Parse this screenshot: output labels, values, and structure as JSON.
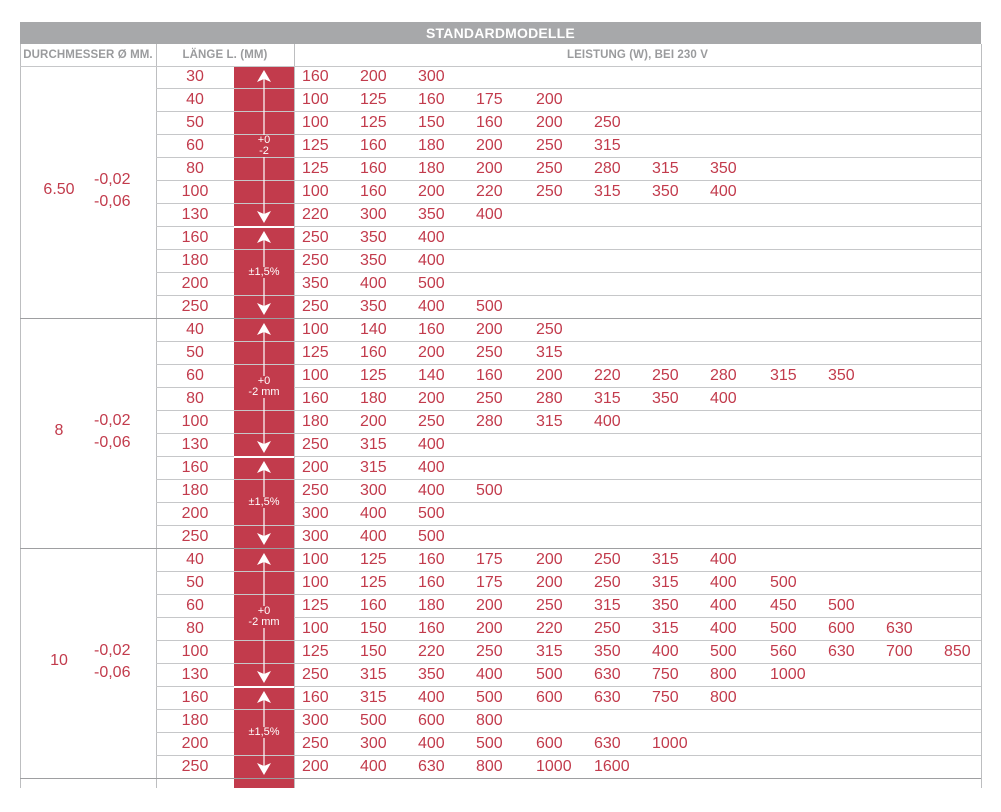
{
  "title": "STANDARDMODELLE",
  "headers": {
    "diameter": "DURCHMESSER Ø MM.",
    "length": "LÄNGE L. (MM)",
    "power": "LEISTUNG (W), BEI 230 V"
  },
  "groups": [
    {
      "diameter": "6.50",
      "tol_upper": "-0,02",
      "tol_lower": "-0,06",
      "length_tol_a": [
        "+0",
        "-2"
      ],
      "length_tol_b": "±1,5%",
      "rows": [
        {
          "length": "30",
          "powers": [
            "160",
            "200",
            "300"
          ]
        },
        {
          "length": "40",
          "powers": [
            "100",
            "125",
            "160",
            "175",
            "200"
          ]
        },
        {
          "length": "50",
          "powers": [
            "100",
            "125",
            "150",
            "160",
            "200",
            "250"
          ]
        },
        {
          "length": "60",
          "powers": [
            "125",
            "160",
            "180",
            "200",
            "250",
            "315"
          ]
        },
        {
          "length": "80",
          "powers": [
            "125",
            "160",
            "180",
            "200",
            "250",
            "280",
            "315",
            "350"
          ]
        },
        {
          "length": "100",
          "powers": [
            "100",
            "160",
            "200",
            "220",
            "250",
            "315",
            "350",
            "400"
          ]
        },
        {
          "length": "130",
          "powers": [
            "220",
            "300",
            "350",
            "400"
          ]
        },
        {
          "length": "160",
          "powers": [
            "250",
            "350",
            "400"
          ]
        },
        {
          "length": "180",
          "powers": [
            "250",
            "350",
            "400"
          ]
        },
        {
          "length": "200",
          "powers": [
            "350",
            "400",
            "500"
          ]
        },
        {
          "length": "250",
          "powers": [
            "250",
            "350",
            "400",
            "500"
          ]
        }
      ]
    },
    {
      "diameter": "8",
      "tol_upper": "-0,02",
      "tol_lower": "-0,06",
      "length_tol_a": [
        "+0",
        "-2 mm"
      ],
      "length_tol_b": "±1,5%",
      "rows": [
        {
          "length": "40",
          "powers": [
            "100",
            "140",
            "160",
            "200",
            "250"
          ]
        },
        {
          "length": "50",
          "powers": [
            "125",
            "160",
            "200",
            "250",
            "315"
          ]
        },
        {
          "length": "60",
          "powers": [
            "100",
            "125",
            "140",
            "160",
            "200",
            "220",
            "250",
            "280",
            "315",
            "350"
          ]
        },
        {
          "length": "80",
          "powers": [
            "160",
            "180",
            "200",
            "250",
            "280",
            "315",
            "350",
            "400"
          ]
        },
        {
          "length": "100",
          "powers": [
            "180",
            "200",
            "250",
            "280",
            "315",
            "400"
          ]
        },
        {
          "length": "130",
          "powers": [
            "250",
            "315",
            "400"
          ]
        },
        {
          "length": "160",
          "powers": [
            "200",
            "315",
            "400"
          ]
        },
        {
          "length": "180",
          "powers": [
            "250",
            "300",
            "400",
            "500"
          ]
        },
        {
          "length": "200",
          "powers": [
            "300",
            "400",
            "500"
          ]
        },
        {
          "length": "250",
          "powers": [
            "300",
            "400",
            "500"
          ]
        }
      ]
    },
    {
      "diameter": "10",
      "tol_upper": "-0,02",
      "tol_lower": "-0,06",
      "length_tol_a": [
        "+0",
        "-2 mm"
      ],
      "length_tol_b": "±1,5%",
      "rows": [
        {
          "length": "40",
          "powers": [
            "100",
            "125",
            "160",
            "175",
            "200",
            "250",
            "315",
            "400"
          ]
        },
        {
          "length": "50",
          "powers": [
            "100",
            "125",
            "160",
            "175",
            "200",
            "250",
            "315",
            "400",
            "500"
          ]
        },
        {
          "length": "60",
          "powers": [
            "125",
            "160",
            "180",
            "200",
            "250",
            "315",
            "350",
            "400",
            "450",
            "500"
          ]
        },
        {
          "length": "80",
          "powers": [
            "100",
            "150",
            "160",
            "200",
            "220",
            "250",
            "315",
            "400",
            "500",
            "600",
            "630"
          ]
        },
        {
          "length": "100",
          "powers": [
            "125",
            "150",
            "220",
            "250",
            "315",
            "350",
            "400",
            "500",
            "560",
            "630",
            "700",
            "850"
          ]
        },
        {
          "length": "130",
          "powers": [
            "250",
            "315",
            "350",
            "400",
            "500",
            "630",
            "750",
            "800",
            "1000"
          ]
        },
        {
          "length": "160",
          "powers": [
            "160",
            "315",
            "400",
            "500",
            "600",
            "630",
            "750",
            "800"
          ]
        },
        {
          "length": "180",
          "powers": [
            "300",
            "500",
            "600",
            "800"
          ]
        },
        {
          "length": "200",
          "powers": [
            "250",
            "300",
            "400",
            "500",
            "600",
            "630",
            "1000"
          ]
        },
        {
          "length": "250",
          "powers": [
            "200",
            "400",
            "630",
            "800",
            "1000",
            "1600"
          ]
        }
      ]
    }
  ],
  "colors": {
    "accent_red": "#c23b4c",
    "header_gray": "#a7a8aa",
    "header_text": "#9a9b9d"
  }
}
